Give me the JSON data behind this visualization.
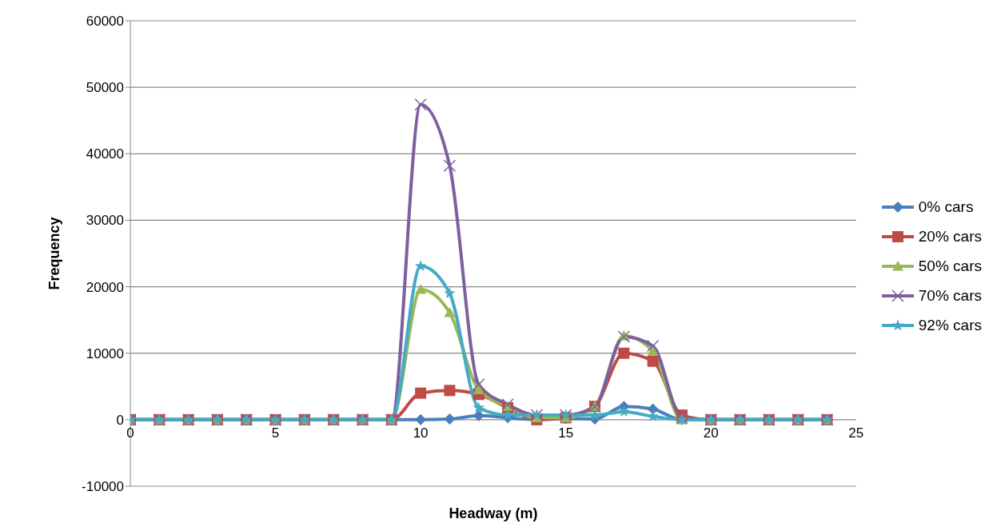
{
  "chart_data": {
    "type": "line",
    "xlabel": "Headway (m)",
    "ylabel": "Frequency",
    "x": [
      0,
      1,
      2,
      3,
      4,
      5,
      6,
      7,
      8,
      9,
      10,
      11,
      12,
      13,
      14,
      15,
      16,
      17,
      18,
      19,
      20,
      21,
      22,
      23,
      24
    ],
    "xlim": [
      0,
      25
    ],
    "xticks": [
      0,
      5,
      10,
      15,
      20,
      25
    ],
    "ylim": [
      -10000,
      60000
    ],
    "yticks": [
      -10000,
      0,
      10000,
      20000,
      30000,
      40000,
      50000,
      60000
    ],
    "grid": "y",
    "legend": "right",
    "series": [
      {
        "name": "0% cars",
        "color": "#4a7ebb",
        "marker": "diamond",
        "values": [
          0,
          0,
          0,
          0,
          0,
          0,
          0,
          0,
          0,
          0,
          0,
          100,
          600,
          300,
          0,
          200,
          100,
          2000,
          1600,
          0,
          0,
          0,
          0,
          0,
          0
        ]
      },
      {
        "name": "20% cars",
        "color": "#be4b48",
        "marker": "square",
        "values": [
          0,
          0,
          0,
          0,
          0,
          0,
          0,
          0,
          0,
          0,
          4000,
          4400,
          3800,
          1800,
          0,
          300,
          2000,
          10000,
          8800,
          700,
          0,
          0,
          0,
          0,
          0
        ]
      },
      {
        "name": "50% cars",
        "color": "#98b954",
        "marker": "triangle",
        "values": [
          0,
          0,
          0,
          0,
          0,
          0,
          0,
          0,
          0,
          0,
          19600,
          16100,
          4500,
          2000,
          300,
          300,
          2000,
          12600,
          10300,
          0,
          0,
          0,
          0,
          0,
          0
        ]
      },
      {
        "name": "70% cars",
        "color": "#7d60a0",
        "marker": "cross",
        "values": [
          0,
          0,
          0,
          0,
          0,
          0,
          0,
          0,
          0,
          0,
          47400,
          38200,
          5300,
          2300,
          700,
          700,
          2000,
          12500,
          11100,
          300,
          0,
          0,
          0,
          0,
          0
        ]
      },
      {
        "name": "92% cars",
        "color": "#46aac5",
        "marker": "star",
        "values": [
          0,
          0,
          0,
          0,
          0,
          0,
          0,
          0,
          0,
          0,
          23100,
          19000,
          1800,
          700,
          700,
          700,
          700,
          1200,
          500,
          0,
          0,
          0,
          0,
          0,
          0
        ]
      }
    ]
  }
}
